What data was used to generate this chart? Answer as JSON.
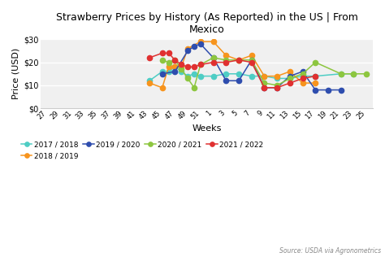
{
  "title": "Strawberry Prices by History (As Reported) in the US | From\nMexico",
  "xlabel": "Weeks",
  "ylabel": "Price (USD)",
  "source": "Source: USDA via Agronometrics",
  "ylim": [
    0,
    30
  ],
  "yticks": [
    0,
    10,
    20,
    30
  ],
  "ytick_labels": [
    "$0",
    "$10",
    "$20",
    "$30"
  ],
  "x_labels": [
    "27",
    "29",
    "31",
    "33",
    "35",
    "37",
    "39",
    "41",
    "43",
    "45",
    "47",
    "49",
    "51",
    "1",
    "3",
    "5",
    "7",
    "9",
    "11",
    "13",
    "15",
    "17",
    "19",
    "21",
    "23",
    "25"
  ],
  "background_color": "#ffffff",
  "plot_bg_color": "#f0f0f0",
  "series": {
    "2017 / 2018": {
      "color": "#4ecdc4",
      "weeks": [
        43,
        45,
        46,
        47,
        48,
        49,
        50,
        51,
        1,
        3,
        5,
        7,
        9,
        11,
        13,
        15,
        17,
        21,
        23
      ],
      "values": [
        12,
        16,
        16,
        18,
        16,
        14,
        15,
        14,
        14,
        15,
        15,
        14,
        14,
        13,
        13,
        14,
        14,
        15,
        15
      ]
    },
    "2018 / 2019": {
      "color": "#f7941d",
      "weeks": [
        43,
        45,
        46,
        47,
        48,
        49,
        51,
        1,
        3,
        5,
        7,
        9,
        11,
        13,
        15,
        17
      ],
      "values": [
        11,
        9,
        18,
        18,
        18,
        26,
        29,
        29,
        23,
        21,
        23,
        14,
        14,
        16,
        11,
        11
      ]
    },
    "2019 / 2020": {
      "color": "#2e4dae",
      "weeks": [
        45,
        47,
        49,
        50,
        51,
        1,
        3,
        5,
        7,
        9,
        11,
        13,
        15,
        17,
        19,
        21
      ],
      "values": [
        15,
        16,
        25,
        27,
        28,
        22,
        12,
        12,
        21,
        9,
        9,
        14,
        16,
        8,
        8,
        8
      ]
    },
    "2020 / 2021": {
      "color": "#8dc63f",
      "weeks": [
        45,
        46,
        47,
        48,
        49,
        50,
        51,
        1,
        3,
        5,
        7,
        9,
        11,
        13,
        15,
        17,
        21,
        23,
        25
      ],
      "values": [
        21,
        20,
        21,
        17,
        13,
        9,
        19,
        22,
        21,
        21,
        21,
        11,
        10,
        13,
        15,
        20,
        15,
        15,
        15
      ]
    },
    "2021 / 2022": {
      "color": "#e03030",
      "weeks": [
        43,
        45,
        46,
        47,
        48,
        49,
        50,
        51,
        1,
        3,
        5,
        7,
        9,
        11,
        13,
        15,
        17
      ],
      "values": [
        22,
        24,
        24,
        21,
        19,
        18,
        18,
        19,
        20,
        20,
        21,
        20,
        9,
        9,
        11,
        13,
        14
      ]
    }
  }
}
